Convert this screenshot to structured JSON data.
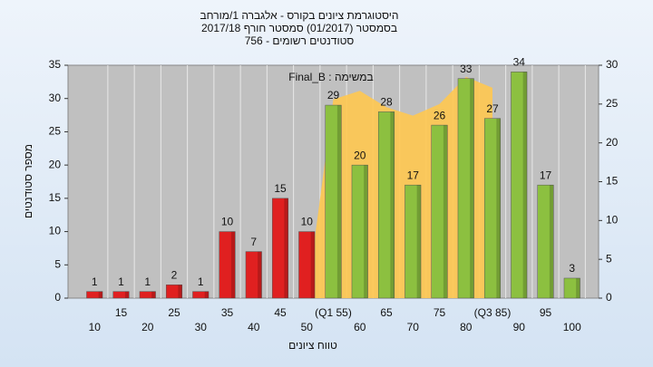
{
  "chart_data": {
    "type": "bar",
    "title": [
      "היסטוגרמת ציונים בקורס - אלגברה 1/מורחב",
      "בסמסטר (01/2017) סמסטר חורף 2017/18",
      "סטודנטים רשומים - 756"
    ],
    "annotation": "במשימה : Final_B",
    "y_label": "מספר סטודנטים",
    "x_label": "טווח ציונים",
    "categories": [
      "10",
      "15",
      "20",
      "25",
      "30",
      "35",
      "40",
      "45",
      "50",
      "(Q1 55)",
      "60",
      "65",
      "70",
      "75",
      "80",
      "(Q3 85)",
      "90",
      "95",
      "100"
    ],
    "values": [
      1,
      1,
      1,
      2,
      1,
      10,
      7,
      15,
      10,
      29,
      20,
      28,
      17,
      26,
      33,
      27,
      34,
      17,
      3
    ],
    "colors": [
      "#e02020",
      "#e02020",
      "#e02020",
      "#e02020",
      "#e02020",
      "#e02020",
      "#e02020",
      "#e02020",
      "#e02020",
      "#8cc040",
      "#8cc040",
      "#8cc040",
      "#8cc040",
      "#8cc040",
      "#8cc040",
      "#8cc040",
      "#8cc040",
      "#8cc040",
      "#8cc040"
    ],
    "area": {
      "axis": "y2",
      "color": "#ffc850",
      "values": [
        null,
        null,
        null,
        null,
        null,
        null,
        null,
        null,
        0,
        25.6,
        26.7,
        24.6,
        23.5,
        25,
        28.5,
        27.1,
        null,
        null,
        null
      ]
    },
    "ylim": [
      0,
      35
    ],
    "yticks": [
      0,
      5,
      10,
      15,
      20,
      25,
      30,
      35
    ],
    "y2lim": [
      0,
      30
    ],
    "y2ticks": [
      0,
      5,
      10,
      15,
      20,
      25,
      30
    ],
    "grid": true
  }
}
